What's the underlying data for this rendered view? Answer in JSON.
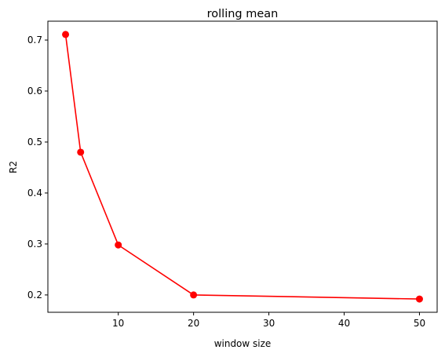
{
  "chart_data": {
    "type": "line",
    "title": "rolling mean",
    "xlabel": "window size",
    "ylabel": "R2",
    "x": [
      3,
      5,
      10,
      20,
      50
    ],
    "series": [
      {
        "values": [
          0.711,
          0.48,
          0.298,
          0.2,
          0.192
        ],
        "color": "#ff0000",
        "marker": "circle"
      }
    ],
    "xlim": [
      0.65,
      52.35
    ],
    "ylim": [
      0.166,
      0.737
    ],
    "xticks": [
      10,
      20,
      30,
      40,
      50
    ],
    "yticks": [
      0.2,
      0.3,
      0.4,
      0.5,
      0.6,
      0.7
    ],
    "xtick_labels": [
      "10",
      "20",
      "30",
      "40",
      "50"
    ],
    "ytick_labels": [
      "0.2",
      "0.3",
      "0.4",
      "0.5",
      "0.6",
      "0.7"
    ],
    "grid": false,
    "legend": "none"
  }
}
